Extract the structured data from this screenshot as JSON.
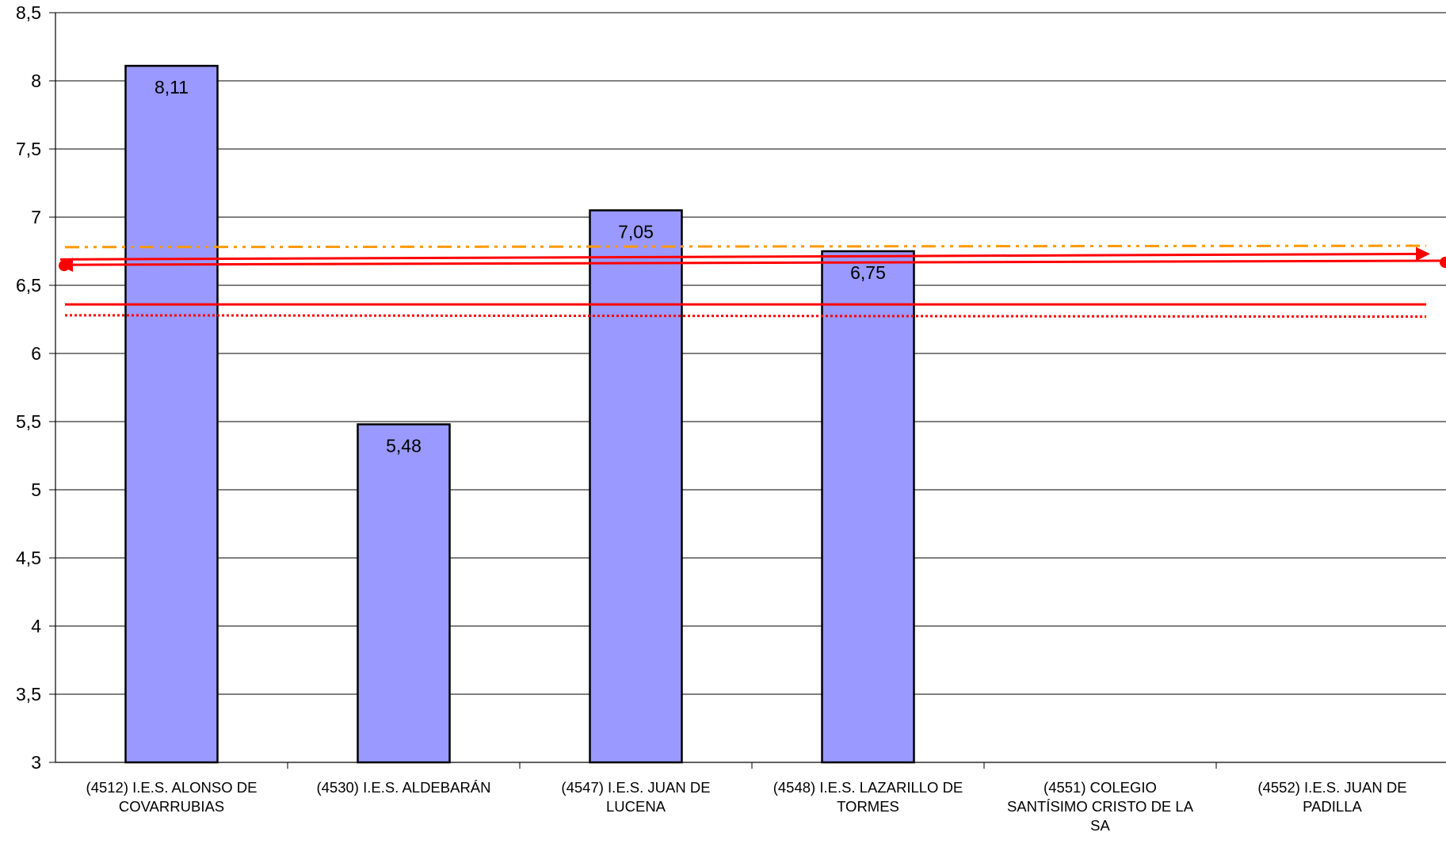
{
  "chart_data": {
    "type": "bar",
    "title": "",
    "xlabel": "",
    "ylabel": "",
    "ylim": [
      3,
      8.5
    ],
    "yticks": [
      {
        "value": 3,
        "label": "3"
      },
      {
        "value": 3.5,
        "label": "3,5"
      },
      {
        "value": 4,
        "label": "4"
      },
      {
        "value": 4.5,
        "label": "4,5"
      },
      {
        "value": 5,
        "label": "5"
      },
      {
        "value": 5.5,
        "label": "5,5"
      },
      {
        "value": 6,
        "label": "6"
      },
      {
        "value": 6.5,
        "label": "6,5"
      },
      {
        "value": 7,
        "label": "7"
      },
      {
        "value": 7.5,
        "label": "7,5"
      },
      {
        "value": 8,
        "label": "8"
      },
      {
        "value": 8.5,
        "label": "8,5"
      }
    ],
    "grid": true,
    "categories": [
      [
        "(4512) I.E.S. ALONSO DE",
        "COVARRUBIAS"
      ],
      [
        "(4530) I.E.S. ALDEBARÁN"
      ],
      [
        "(4547) I.E.S. JUAN DE",
        "LUCENA"
      ],
      [
        "(4548) I.E.S. LAZARILLO DE",
        "TORMES"
      ],
      [
        "(4551) COLEGIO",
        "SANTÍSIMO CRISTO DE LA",
        "SA"
      ],
      [
        "(4552) I.E.S. JUAN DE",
        "PADILLA"
      ]
    ],
    "series": [
      {
        "values": [
          8.11,
          5.48,
          7.05,
          6.75,
          null,
          null
        ],
        "data_labels": [
          "8,11",
          "5,48",
          "7,05",
          "6,75",
          "",
          ""
        ],
        "color": "#9999ff"
      }
    ],
    "reference_lines": [
      {
        "value": 6.78,
        "value_end": 6.79,
        "style": "dash-dot",
        "color": "#ff9900"
      },
      {
        "value": 6.69,
        "value_end": 6.73,
        "style": "solid-arrow-right",
        "color": "#ff0000"
      },
      {
        "value": 6.65,
        "value_end": 6.68,
        "style": "solid-arrow-left-dots",
        "color": "#ff0000"
      },
      {
        "value": 6.36,
        "value_end": 6.36,
        "style": "solid",
        "color": "#ff0000"
      },
      {
        "value": 6.28,
        "value_end": 6.27,
        "style": "dotted",
        "color": "#ff0000"
      }
    ]
  }
}
